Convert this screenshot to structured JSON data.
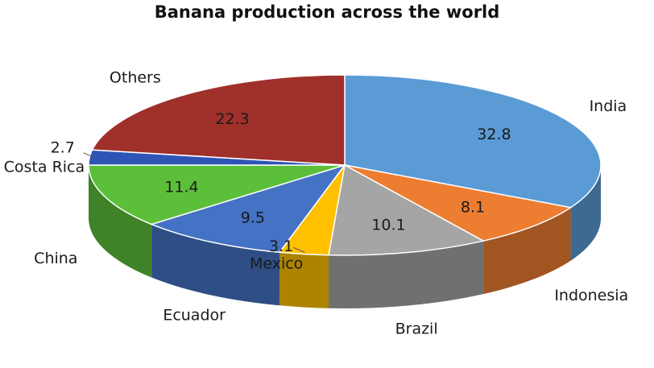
{
  "chart_data": {
    "type": "pie",
    "title": "Banana production across the world",
    "categories": [
      "India",
      "Indonesia",
      "Brazil",
      "Mexico",
      "Ecuador",
      "China",
      "Costa Rica",
      "Others"
    ],
    "series": [
      {
        "values": [
          32.8,
          8.1,
          10.1,
          3.1,
          9.5,
          11.4,
          2.7,
          22.3
        ]
      }
    ],
    "colors": [
      "#5b9bd5",
      "#ed7d31",
      "#a5a5a5",
      "#ffc000",
      "#4472c4",
      "#5cbf3a",
      "#2e55b5",
      "#a0302a"
    ],
    "start_angle_deg": -90,
    "direction": "clockwise",
    "style": "3d-tilted",
    "legend": "none",
    "data_labels": "inside",
    "category_labels": "outside"
  }
}
